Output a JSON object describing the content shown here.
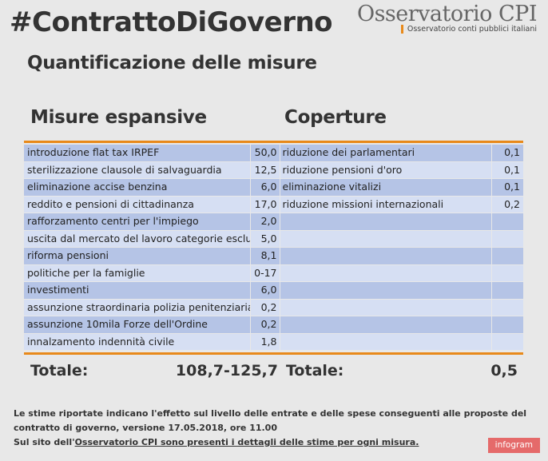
{
  "header": {
    "hashtag": "#ContrattoDiGoverno",
    "brand_name": "Osservatorio CPI",
    "brand_sub": "Osservatorio conti pubblici italiani",
    "accent_color": "#e8891a"
  },
  "subtitle": "Quantificazione delle misure",
  "columns": {
    "left": "Misure espansive",
    "right": "Coperture"
  },
  "rows": [
    {
      "misura": "introduzione flat tax IRPEF",
      "valore": "50,0",
      "copertura": "riduzione dei parlamentari",
      "cop_valore": "0,1"
    },
    {
      "misura": "sterilizzazione clausole di salvaguardia",
      "valore": "12,5",
      "copertura": "riduzione pensioni d'oro",
      "cop_valore": "0,1"
    },
    {
      "misura": "eliminazione accise benzina",
      "valore": "6,0",
      "copertura": "eliminazione vitalizi",
      "cop_valore": "0,1"
    },
    {
      "misura": "reddito e pensioni di cittadinanza",
      "valore": "17,0",
      "copertura": "riduzione missioni internazionali",
      "cop_valore": "0,2"
    },
    {
      "misura": "rafforzamento centri per l'impiego",
      "valore": "2,0",
      "copertura": "",
      "cop_valore": ""
    },
    {
      "misura": "uscita dal mercato del lavoro categorie escluse",
      "valore": "5,0",
      "copertura": "",
      "cop_valore": ""
    },
    {
      "misura": "riforma pensioni",
      "valore": "8,1",
      "copertura": "",
      "cop_valore": ""
    },
    {
      "misura": "politiche per la famiglie",
      "valore": "0-17",
      "copertura": "",
      "cop_valore": ""
    },
    {
      "misura": "investimenti",
      "valore": "6,0",
      "copertura": "",
      "cop_valore": ""
    },
    {
      "misura": "assunzione straordinaria polizia penitenziaria",
      "valore": "0,2",
      "copertura": "",
      "cop_valore": ""
    },
    {
      "misura": "assunzione 10mila Forze dell'Ordine",
      "valore": "0,2",
      "copertura": "",
      "cop_valore": ""
    },
    {
      "misura": "innalzamento indennità civile",
      "valore": "1,8",
      "copertura": "",
      "cop_valore": ""
    }
  ],
  "totals": {
    "left_label": "Totale:",
    "left_value": "108,7-125,7",
    "right_label": "Totale:",
    "right_value": "0,5"
  },
  "footnote": {
    "line1": "Le stime riportate indicano l'effetto sul livello delle entrate e delle spese conseguenti alle proposte del contratto di governo, versione 17.05.2018, ore 11.00",
    "line2_prefix": "Sul sito dell'",
    "line2_link": "Osservatorio CPI sono presenti i dettagli delle stime per ogni misura."
  },
  "badge": "infogram"
}
